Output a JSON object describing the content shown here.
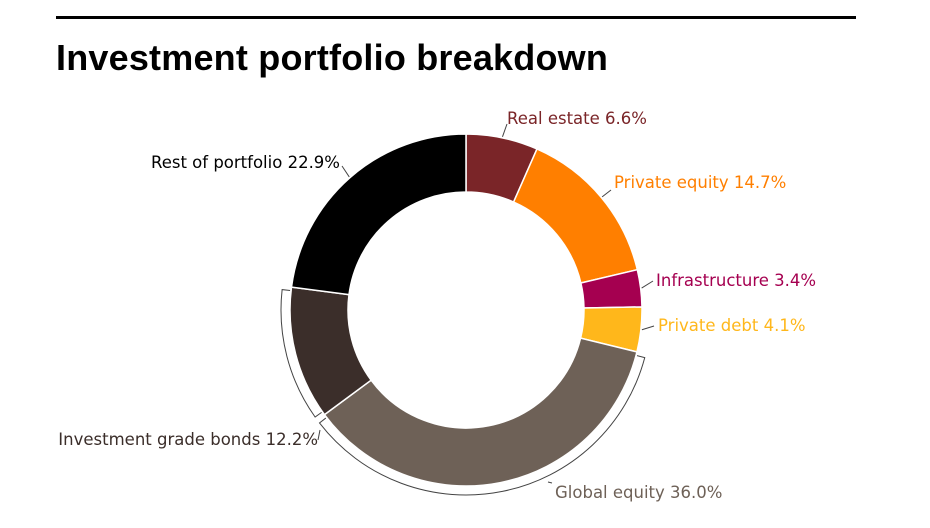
{
  "chart_data": {
    "type": "pie",
    "variant": "donut",
    "title": "Investment portfolio breakdown",
    "slices": [
      {
        "label": "Real estate",
        "value": 6.6,
        "value_text": "6.6%",
        "color": "#7a2528"
      },
      {
        "label": "Private equity",
        "value": 14.7,
        "value_text": "14.7%",
        "color": "#ff7f00"
      },
      {
        "label": "Infrastructure",
        "value": 3.4,
        "value_text": "3.4%",
        "color": "#a50050"
      },
      {
        "label": "Private debt",
        "value": 4.1,
        "value_text": "4.1%",
        "color": "#ffb71b"
      },
      {
        "label": "Global equity",
        "value": 36.0,
        "value_text": "36.0%",
        "color": "#6e6157"
      },
      {
        "label": "Investment grade bonds",
        "value": 12.2,
        "value_text": "12.2%",
        "color": "#3b2e2a"
      },
      {
        "label": "Rest of portfolio",
        "value": 22.9,
        "value_text": "22.9%",
        "color": "#000000"
      }
    ],
    "label_colors": [
      "#7a2528",
      "#ff7f00",
      "#a50050",
      "#ffb71b",
      "#6e6157",
      "#3b2e2a",
      "#000000"
    ],
    "legend": "none"
  }
}
